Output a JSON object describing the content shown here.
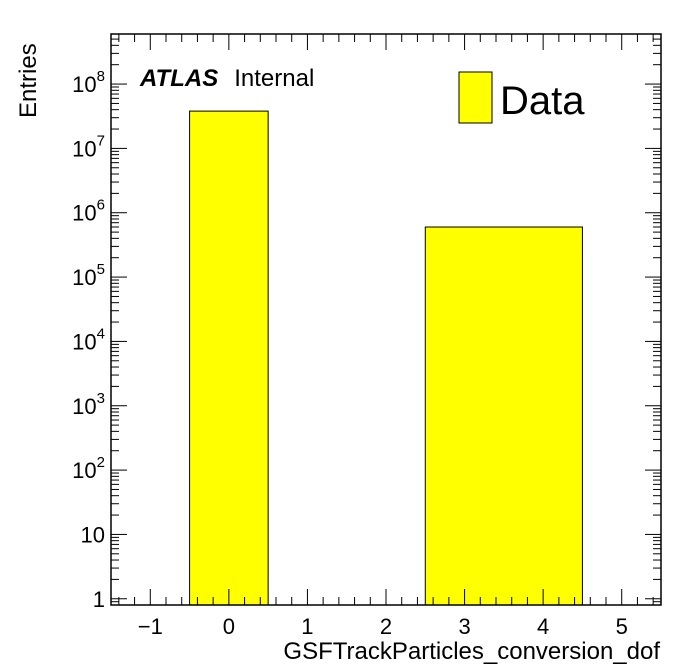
{
  "chart_data": {
    "type": "bar",
    "xlabel": "GSFTrackParticles_conversion_dof",
    "ylabel": "Entries",
    "xlim": [
      -1.5,
      5.5
    ],
    "ylim": [
      0.8,
      600000000
    ],
    "yscale": "log",
    "x_ticks": [
      -1,
      0,
      1,
      2,
      3,
      4,
      5
    ],
    "x_tick_labels": [
      "−1",
      "0",
      "1",
      "2",
      "3",
      "4",
      "5"
    ],
    "y_ticks": [
      1,
      10,
      100,
      1000,
      10000,
      100000,
      1000000,
      10000000,
      100000000
    ],
    "y_tick_labels": [
      "1",
      "10",
      "10|2",
      "10|3",
      "10|4",
      "10|5",
      "10|6",
      "10|7",
      "10|8"
    ],
    "bars": [
      {
        "x_low": -0.5,
        "x_high": 0.5,
        "value": 38000000
      },
      {
        "x_low": 2.5,
        "x_high": 4.5,
        "value": 600000
      }
    ],
    "series": [
      {
        "name": "Data",
        "color": "#ffff00",
        "edge_color": "#000000"
      }
    ],
    "legend_placement": "top-right",
    "grid": false
  },
  "label": {
    "experiment": "ATLAS",
    "status": "Internal"
  },
  "colors": {
    "fill": "#ffff00",
    "edge": "#000000",
    "background": "#ffffff"
  }
}
